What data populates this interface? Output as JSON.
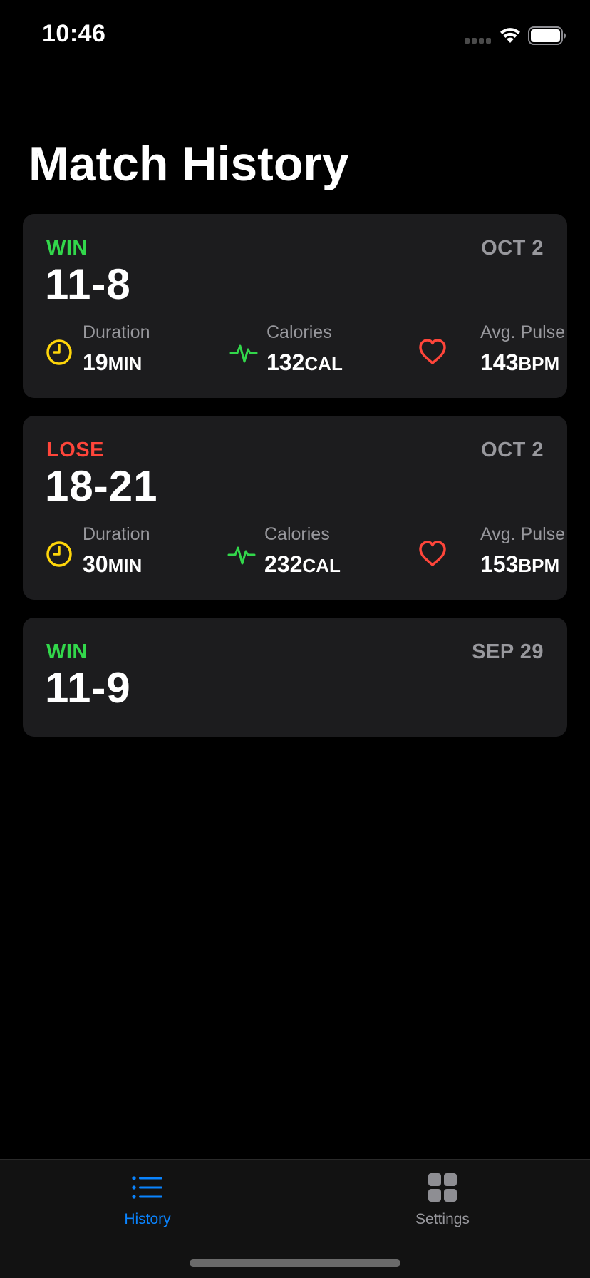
{
  "status_bar": {
    "time": "10:46"
  },
  "title": "Match History",
  "matches": [
    {
      "result": "WIN",
      "result_color": "#32d74b",
      "date": "OCT 2",
      "score": "11-8",
      "duration_label": "Duration",
      "duration_value": "19",
      "duration_unit": "MIN",
      "calories_label": "Calories",
      "calories_value": "132",
      "calories_unit": "CAL",
      "pulse_label": "Avg. Pulse",
      "pulse_value": "143",
      "pulse_unit": "BPM"
    },
    {
      "result": "LOSE",
      "result_color": "#ff453a",
      "date": "OCT 2",
      "score": "18-21",
      "duration_label": "Duration",
      "duration_value": "30",
      "duration_unit": "MIN",
      "calories_label": "Calories",
      "calories_value": "232",
      "calories_unit": "CAL",
      "pulse_label": "Avg. Pulse",
      "pulse_value": "153",
      "pulse_unit": "BPM"
    },
    {
      "result": "WIN",
      "result_color": "#32d74b",
      "date": "SEP 29",
      "score": "11-9"
    }
  ],
  "icons": {
    "duration": "clock-icon",
    "calories": "heartbeat-icon",
    "pulse": "heart-icon",
    "history_tab": "list-icon",
    "settings_tab": "grid-icon"
  },
  "colors": {
    "accent": "#0a84ff",
    "win": "#32d74b",
    "lose": "#ff453a",
    "clock": "#ffd60a",
    "card_bg": "#1c1c1e",
    "secondary_text": "#98989d"
  },
  "tab_bar": {
    "tabs": [
      {
        "label": "History",
        "selected": true
      },
      {
        "label": "Settings",
        "selected": false
      }
    ]
  }
}
